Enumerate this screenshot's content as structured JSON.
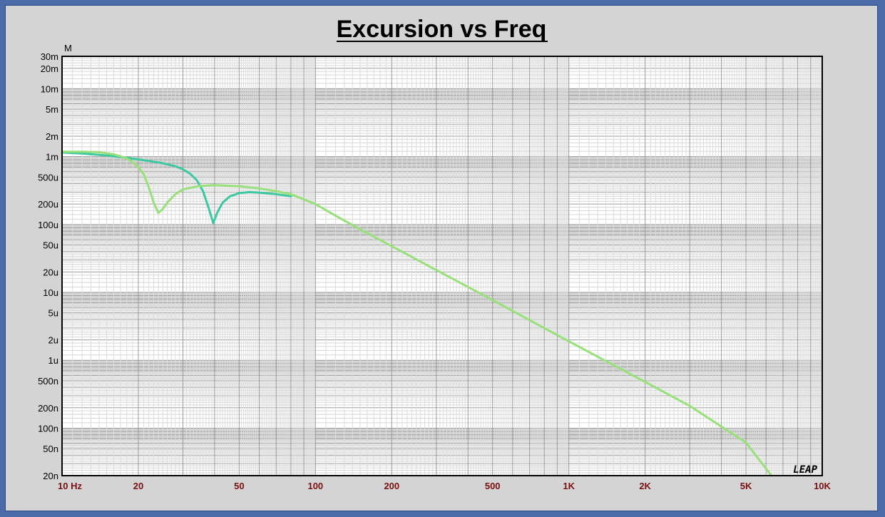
{
  "chart_data": {
    "type": "line",
    "title": "Excursion vs Freq",
    "ylabel": "M",
    "xscale": "log",
    "yscale": "log",
    "xlim": [
      10,
      10000
    ],
    "ylim": [
      2e-08,
      0.03
    ],
    "grid": true,
    "x_ticks": [
      {
        "value": 10,
        "label": "10  Hz"
      },
      {
        "value": 20,
        "label": "20"
      },
      {
        "value": 50,
        "label": "50"
      },
      {
        "value": 100,
        "label": "100"
      },
      {
        "value": 200,
        "label": "200"
      },
      {
        "value": 500,
        "label": "500"
      },
      {
        "value": 1000,
        "label": "1K"
      },
      {
        "value": 2000,
        "label": "2K"
      },
      {
        "value": 5000,
        "label": "5K"
      },
      {
        "value": 10000,
        "label": "10K"
      }
    ],
    "y_ticks": [
      {
        "value": 0.03,
        "label": "30m"
      },
      {
        "value": 0.02,
        "label": "20m"
      },
      {
        "value": 0.01,
        "label": "10m"
      },
      {
        "value": 0.005,
        "label": "5m"
      },
      {
        "value": 0.002,
        "label": "2m"
      },
      {
        "value": 0.001,
        "label": "1m"
      },
      {
        "value": 0.0005,
        "label": "500u"
      },
      {
        "value": 0.0002,
        "label": "200u"
      },
      {
        "value": 0.0001,
        "label": "100u"
      },
      {
        "value": 5e-05,
        "label": "50u"
      },
      {
        "value": 2e-05,
        "label": "20u"
      },
      {
        "value": 1e-05,
        "label": "10u"
      },
      {
        "value": 5e-06,
        "label": "5u"
      },
      {
        "value": 2e-06,
        "label": "2u"
      },
      {
        "value": 1e-06,
        "label": "1u"
      },
      {
        "value": 5e-07,
        "label": "500n"
      },
      {
        "value": 2e-07,
        "label": "200n"
      },
      {
        "value": 1e-07,
        "label": "100n"
      },
      {
        "value": 5e-08,
        "label": "50n"
      },
      {
        "value": 2e-08,
        "label": "20n"
      }
    ],
    "series": [
      {
        "color": "#3cc8a0",
        "points": [
          [
            10,
            0.00115
          ],
          [
            12,
            0.00111
          ],
          [
            15,
            0.00104
          ],
          [
            18,
            0.00096
          ],
          [
            20,
            0.00091
          ],
          [
            25,
            0.0008
          ],
          [
            28,
            0.00072
          ],
          [
            30,
            0.00065
          ],
          [
            32,
            0.00056
          ],
          [
            34,
            0.00045
          ],
          [
            36,
            0.00031
          ],
          [
            38,
            0.00017
          ],
          [
            39.5,
            0.000105
          ],
          [
            41,
            0.00015
          ],
          [
            43,
            0.00021
          ],
          [
            46,
            0.00026
          ],
          [
            50,
            0.00029
          ],
          [
            55,
            0.0003
          ],
          [
            60,
            0.000295
          ],
          [
            70,
            0.00028
          ],
          [
            80,
            0.00026
          ]
        ]
      },
      {
        "color": "#98e07a",
        "points": [
          [
            10,
            0.00118
          ],
          [
            12,
            0.00118
          ],
          [
            14,
            0.00116
          ],
          [
            16,
            0.00108
          ],
          [
            17,
            0.00101
          ],
          [
            18,
            0.00094
          ],
          [
            19,
            0.00083
          ],
          [
            20,
            0.0007
          ],
          [
            21,
            0.00055
          ],
          [
            22,
            0.00035
          ],
          [
            23,
            0.00021
          ],
          [
            24,
            0.000148
          ],
          [
            25,
            0.00017
          ],
          [
            26,
            0.00021
          ],
          [
            28,
            0.00028
          ],
          [
            30,
            0.00033
          ],
          [
            35,
            0.00037
          ],
          [
            40,
            0.00038
          ],
          [
            50,
            0.000365
          ],
          [
            60,
            0.00034
          ],
          [
            70,
            0.00031
          ],
          [
            80,
            0.00028
          ],
          [
            100,
            0.0002
          ],
          [
            120,
            0.000135
          ],
          [
            150,
            8.5e-05
          ],
          [
            200,
            4.8e-05
          ],
          [
            300,
            2.13e-05
          ],
          [
            500,
            7.7e-06
          ],
          [
            1000,
            1.9e-06
          ],
          [
            2000,
            4.8e-07
          ],
          [
            3000,
            2.13e-07
          ],
          [
            5000,
            6.15e-08
          ],
          [
            6300,
            2e-08
          ]
        ]
      }
    ]
  },
  "logo_text": "LEAP"
}
